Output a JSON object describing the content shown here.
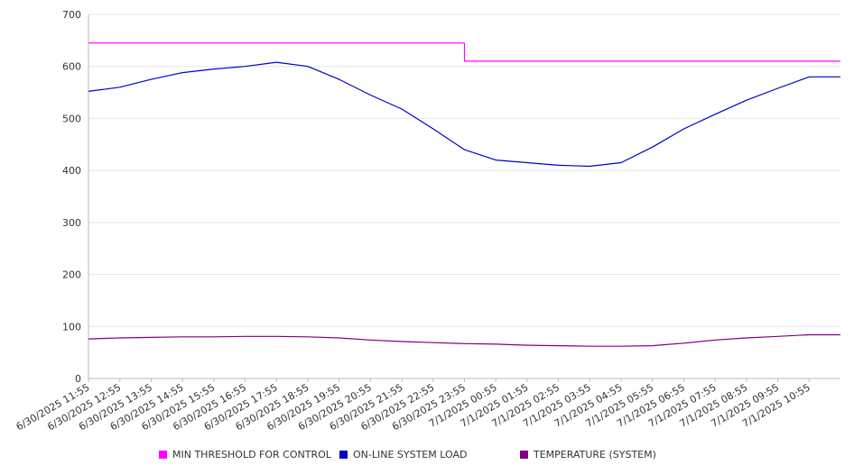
{
  "chart_data": {
    "type": "line",
    "title": "",
    "xlabel": "",
    "ylabel": "",
    "ylim": [
      0,
      700
    ],
    "yticks": [
      0,
      100,
      200,
      300,
      400,
      500,
      600,
      700
    ],
    "grid": true,
    "legend_position": "bottom",
    "x": [
      "6/30/2025 11:55",
      "6/30/2025 12:55",
      "6/30/2025 13:55",
      "6/30/2025 14:55",
      "6/30/2025 15:55",
      "6/30/2025 16:55",
      "6/30/2025 17:55",
      "6/30/2025 18:55",
      "6/30/2025 19:55",
      "6/30/2025 20:55",
      "6/30/2025 21:55",
      "6/30/2025 22:55",
      "6/30/2025 23:55",
      "7/1/2025 00:55",
      "7/1/2025 01:55",
      "7/1/2025 02:55",
      "7/1/2025 03:55",
      "7/1/2025 04:55",
      "7/1/2025 05:55",
      "7/1/2025 06:55",
      "7/1/2025 07:55",
      "7/1/2025 08:55",
      "7/1/2025 09:55",
      "7/1/2025 10:55"
    ],
    "series": [
      {
        "name": "MIN THRESHOLD FOR CONTROL",
        "color": "#ff00ff",
        "values": [
          645,
          645,
          645,
          645,
          645,
          645,
          645,
          645,
          645,
          645,
          645,
          645,
          610,
          610,
          610,
          610,
          610,
          610,
          610,
          610,
          610,
          610,
          610,
          610
        ]
      },
      {
        "name": "ON-LINE SYSTEM LOAD",
        "color": "#0000cc",
        "values": [
          552,
          560,
          575,
          588,
          595,
          600,
          608,
          600,
          575,
          545,
          518,
          480,
          440,
          420,
          415,
          410,
          408,
          415,
          445,
          480,
          508,
          535,
          558,
          580
        ]
      },
      {
        "name": "TEMPERATURE (SYSTEM)",
        "color": "#800080",
        "values": [
          76,
          78,
          79,
          80,
          80,
          81,
          81,
          80,
          78,
          74,
          71,
          69,
          67,
          66,
          64,
          63,
          62,
          62,
          63,
          68,
          74,
          78,
          81,
          84
        ]
      }
    ]
  }
}
